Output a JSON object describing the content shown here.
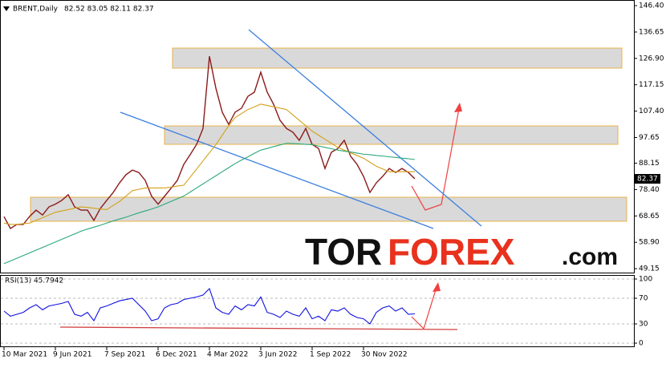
{
  "chart_data": [
    {
      "type": "line",
      "title": "BRENT,Daily",
      "subtitle": "82.52 83.05 82.11 82.37",
      "series": [
        {
          "color": "#8b1a1a",
          "values": [
            68.4,
            64,
            65.5,
            65.5,
            68.5,
            70.8,
            69,
            72,
            73,
            74.4,
            76.5,
            72,
            70.8,
            70.8,
            67,
            71.4,
            74.4,
            77.3,
            80.9,
            83.9,
            85.6,
            84.7,
            81.8,
            75.9,
            73,
            75.9,
            78.8,
            81.8,
            87.7,
            91.3,
            95.1,
            101,
            127.7,
            115.9,
            107,
            102.5,
            107,
            108.5,
            112.9,
            114.4,
            121.8,
            114.4,
            109.9,
            104,
            101,
            99.6,
            96.6,
            101,
            95.1,
            93.6,
            86.2,
            92.2,
            93.6,
            96.6,
            90.7,
            87.7,
            83.3,
            77.3,
            80.9,
            83.3,
            86.2,
            84.7,
            86.2,
            84.7,
            82.37
          ]
        },
        {
          "color": "#d4a017",
          "values": [
            66,
            65.5,
            65.5,
            65.8,
            66,
            67,
            68,
            69,
            70,
            70.5,
            71,
            71.5,
            72,
            71.8,
            71.5,
            71.2,
            71,
            72.5,
            74,
            76,
            78,
            78.5,
            79,
            79,
            79,
            79,
            79.3,
            79.7,
            80,
            83,
            86,
            89,
            92,
            95,
            98.5,
            102,
            105,
            106.5,
            108,
            109,
            110,
            109.5,
            109,
            108.5,
            108,
            106,
            104,
            102,
            100,
            98.5,
            97,
            95.5,
            94,
            93,
            92,
            91,
            90,
            88.5,
            87,
            86,
            85,
            85,
            85,
            85,
            85
          ]
        },
        {
          "color": "#2aa87a",
          "values": [
            51,
            52,
            53,
            54,
            55,
            56,
            57,
            58,
            59,
            60,
            61,
            62,
            63,
            63.8,
            64.5,
            65.2,
            66,
            66.8,
            67.5,
            68.2,
            69,
            69.8,
            70.5,
            71.2,
            72,
            73,
            74,
            75,
            76,
            77.5,
            79,
            80.5,
            82,
            83.5,
            85,
            86.5,
            88,
            89.3,
            90.5,
            91.8,
            93,
            93.6,
            94.3,
            94.9,
            95.5,
            95.4,
            95.3,
            95.1,
            95,
            94.5,
            94,
            93.5,
            93,
            92.6,
            92.3,
            91.9,
            91.5,
            91.3,
            91,
            90.8,
            90.5,
            90.3,
            90,
            89.8,
            89.5
          ]
        }
      ],
      "last_price": 82.37,
      "ylim": [
        47.7,
        147.9
      ],
      "yticks": [
        {
          "value": 146.4,
          "label": "146.40"
        },
        136.65,
        {
          "value": 126.9,
          "label": "126.90"
        },
        117.15,
        {
          "value": 107.4,
          "label": "107.40"
        },
        97.65,
        88.15,
        {
          "value": 78.4,
          "label": "78.40"
        },
        68.65,
        {
          "value": 58.9,
          "label": "58.90"
        },
        49.15
      ],
      "watermark": [
        "TOR",
        "FOREX",
        ".com"
      ]
    },
    {
      "type": "line",
      "title": "RSI(13) 45.7942",
      "categories": [
        "10 Mar 2021",
        null,
        null,
        null,
        null,
        null,
        null,
        null,
        "9 Jun 2021",
        null,
        null,
        null,
        null,
        null,
        null,
        null,
        "7 Sep 2021",
        null,
        null,
        null,
        null,
        null,
        null,
        null,
        "6 Dec 2021",
        null,
        null,
        null,
        null,
        null,
        null,
        null,
        "4 Mar 2022",
        null,
        null,
        null,
        null,
        null,
        null,
        null,
        "3 Jun 2022",
        null,
        null,
        null,
        null,
        null,
        null,
        null,
        "1 Sep 2022",
        null,
        null,
        null,
        null,
        null,
        null,
        null,
        "30 Nov 2022",
        null,
        null,
        null,
        null,
        null,
        null,
        null,
        null
      ],
      "series": [
        {
          "color": "#1010e0",
          "values": [
            50,
            42,
            45,
            48,
            55,
            60,
            52,
            58,
            60,
            62,
            65,
            45,
            42,
            48,
            35,
            55,
            58,
            62,
            66,
            68,
            70,
            60,
            50,
            35,
            38,
            55,
            60,
            62,
            68,
            70,
            72,
            75,
            85,
            55,
            48,
            45,
            58,
            52,
            60,
            58,
            72,
            48,
            45,
            40,
            50,
            45,
            42,
            55,
            38,
            42,
            35,
            52,
            50,
            55,
            45,
            40,
            38,
            30,
            48,
            55,
            58,
            50,
            55,
            45,
            45.79
          ]
        }
      ],
      "ylim": [
        -5,
        105
      ],
      "yticks": [
        0,
        30,
        70,
        100
      ]
    }
  ]
}
